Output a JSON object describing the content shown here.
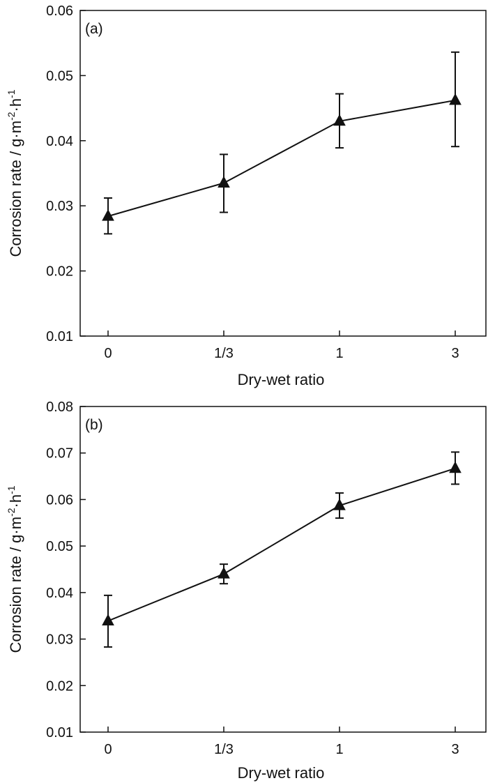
{
  "chart_data": [
    {
      "type": "line",
      "panel_label": "(a)",
      "xlabel": "Dry-wet ratio",
      "ylabel_main": "Corrosion rate / g·m",
      "ylabel_sup1": "-2",
      "ylabel_mid": "·h",
      "ylabel_sup2": "-1",
      "categories": [
        "0",
        "1/3",
        "1",
        "3"
      ],
      "ylim": [
        0.01,
        0.06
      ],
      "yticks": [
        "0.01",
        "0.02",
        "0.03",
        "0.04",
        "0.05",
        "0.06"
      ],
      "grid": false,
      "marker": "filled-triangle",
      "series": [
        {
          "values": [
            0.0284,
            0.0335,
            0.043,
            0.0462
          ],
          "err_low": [
            0.0257,
            0.029,
            0.0389,
            0.0391
          ],
          "err_high": [
            0.0312,
            0.0379,
            0.0472,
            0.0536
          ]
        }
      ]
    },
    {
      "type": "line",
      "panel_label": "(b)",
      "xlabel": "Dry-wet ratio",
      "ylabel_main": "Corrosion rate / g·m",
      "ylabel_sup1": "-2",
      "ylabel_mid": "·h",
      "ylabel_sup2": "-1",
      "categories": [
        "0",
        "1/3",
        "1",
        "3"
      ],
      "ylim": [
        0.01,
        0.08
      ],
      "yticks": [
        "0.01",
        "0.02",
        "0.03",
        "0.04",
        "0.05",
        "0.06",
        "0.07",
        "0.08"
      ],
      "grid": false,
      "marker": "filled-triangle",
      "series": [
        {
          "values": [
            0.0339,
            0.044,
            0.0587,
            0.0667
          ],
          "err_low": [
            0.0283,
            0.0419,
            0.056,
            0.0633
          ],
          "err_high": [
            0.0394,
            0.0461,
            0.0614,
            0.0702
          ]
        }
      ]
    }
  ]
}
